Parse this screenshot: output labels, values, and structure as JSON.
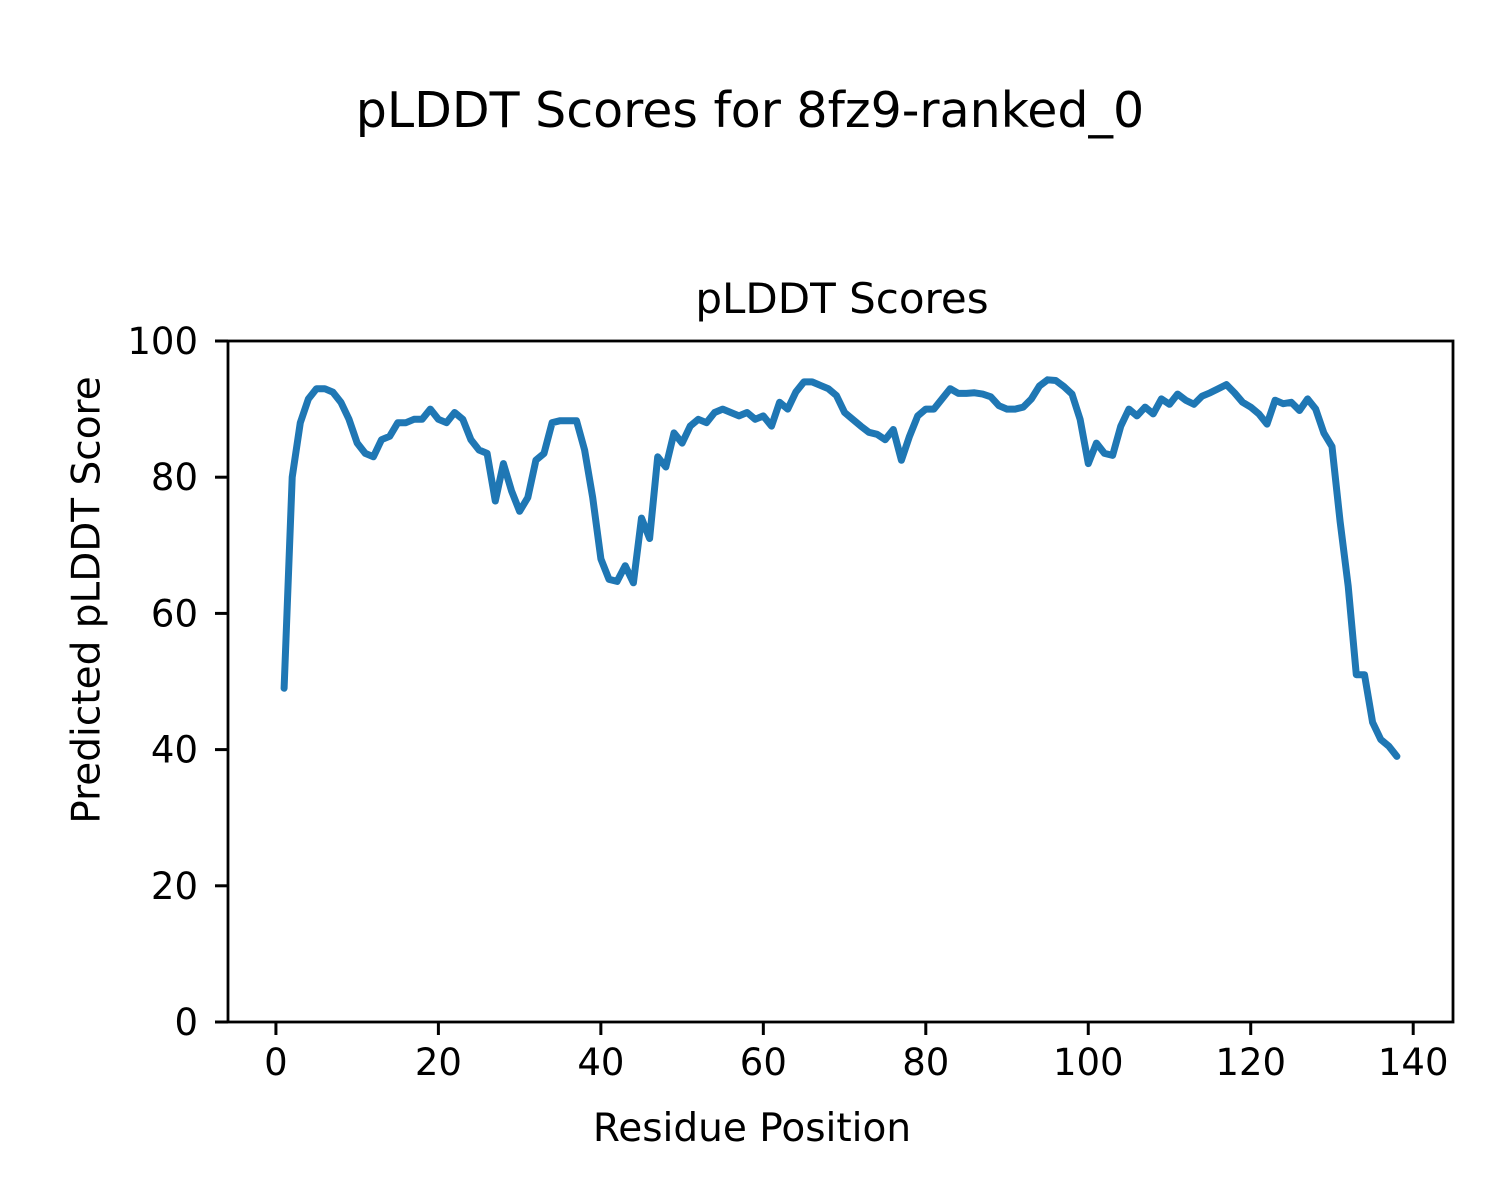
{
  "chart_data": {
    "type": "line",
    "suptitle": "pLDDT Scores for 8fz9-ranked_0",
    "title": "pLDDT Scores",
    "xlabel": "Residue Position",
    "ylabel": "Predicted pLDDT Score",
    "x_ticks": [
      0,
      20,
      40,
      60,
      80,
      100,
      120,
      140
    ],
    "y_ticks": [
      0,
      20,
      40,
      60,
      80,
      100
    ],
    "xlim": [
      -5.9,
      144.9
    ],
    "ylim": [
      0,
      100
    ],
    "grid": false,
    "legend": "none",
    "line_color": "#1f77b4",
    "x_start": 1,
    "x_end": 138,
    "series": [
      {
        "name": "pLDDT",
        "values": [
          49,
          80,
          88,
          91.5,
          93,
          93,
          92.5,
          91,
          88.5,
          85,
          83.5,
          83,
          85.5,
          86,
          88,
          88,
          88.5,
          88.5,
          90,
          88.5,
          88,
          89.5,
          88.5,
          85.5,
          84,
          83.5,
          76.5,
          82,
          78,
          75,
          77,
          82.5,
          83.5,
          88,
          88.3,
          88.3,
          88.3,
          84,
          77,
          68,
          65,
          64.7,
          67,
          64.5,
          74,
          71,
          83,
          81.5,
          86.5,
          85,
          87.5,
          88.5,
          88,
          89.5,
          90,
          89.5,
          89,
          89.5,
          88.5,
          89,
          87.5,
          91,
          90,
          92.5,
          94,
          94,
          93.5,
          93,
          92,
          89.5,
          88.5,
          87.5,
          86.6,
          86.3,
          85.5,
          87,
          82.5,
          86,
          89,
          90,
          90,
          91.5,
          93,
          92.3,
          92.3,
          92.4,
          92.2,
          91.8,
          90.5,
          90,
          90,
          90.3,
          91.5,
          93.4,
          94.3,
          94.2,
          93.3,
          92.2,
          88.5,
          82,
          85,
          83.5,
          83.2,
          87.5,
          90,
          89,
          90.3,
          89.3,
          91.5,
          90.7,
          92.2,
          91.3,
          90.7,
          91.9,
          92.4,
          93,
          93.6,
          92.4,
          91,
          90.3,
          89.3,
          87.8,
          91.3,
          90.8,
          91,
          89.8,
          91.5,
          90,
          86.5,
          84.5,
          73.5,
          64,
          51,
          51,
          44,
          41.5,
          40.5,
          39
        ]
      }
    ]
  }
}
